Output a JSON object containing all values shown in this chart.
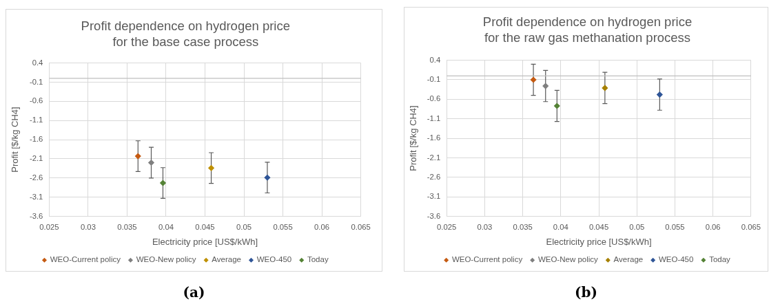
{
  "chart_data": [
    {
      "type": "scatter",
      "title": "Profit dependence on hydrogen price\nfor the base case process",
      "xlabel": "Electricity price [US$/kWh]",
      "ylabel": "Profit [$/kg CH4]",
      "xlim": [
        0.025,
        0.065
      ],
      "xticks": [
        0.025,
        0.03,
        0.035,
        0.04,
        0.045,
        0.05,
        0.055,
        0.06,
        0.065
      ],
      "ylim": [
        -3.6,
        0.4
      ],
      "yticks": [
        -3.6,
        -3.1,
        -2.6,
        -2.1,
        -1.6,
        -1.1,
        -0.6,
        -0.1,
        0.4
      ],
      "grid": true,
      "legend": "bottom",
      "marker": "diamond",
      "ref_lines": [
        {
          "axis": "y",
          "value": 0,
          "color": "#bfbfbf"
        }
      ],
      "annotations": [
        "(a)"
      ],
      "series": [
        {
          "name": "WEO-Current policy",
          "color": "#c55a11",
          "x": [
            0.0364
          ],
          "values": [
            -2.03
          ],
          "errors": [
            0.4
          ]
        },
        {
          "name": "WEO-New policy",
          "color": "#7f7f7f",
          "x": [
            0.0381
          ],
          "values": [
            -2.2
          ],
          "errors": [
            0.4
          ]
        },
        {
          "name": "Average",
          "color": "#bf9000",
          "x": [
            0.0458
          ],
          "values": [
            -2.34
          ],
          "errors": [
            0.4
          ]
        },
        {
          "name": "WEO-450",
          "color": "#2f5597",
          "x": [
            0.053
          ],
          "values": [
            -2.59
          ],
          "errors": [
            0.4
          ]
        },
        {
          "name": "Today",
          "color": "#548235",
          "x": [
            0.0396
          ],
          "values": [
            -2.73
          ],
          "errors": [
            0.4
          ]
        }
      ]
    },
    {
      "type": "scatter",
      "title": "Profit dependence on hydrogen price\nfor the raw gas methanation process",
      "xlabel": "Electricity price [US$/kWh]",
      "ylabel": "Profit [$/kg CH4]",
      "xlim": [
        0.025,
        0.065
      ],
      "xticks": [
        0.025,
        0.03,
        0.035,
        0.04,
        0.045,
        0.05,
        0.055,
        0.06,
        0.065
      ],
      "ylim": [
        -3.6,
        0.4
      ],
      "yticks": [
        -3.6,
        -3.1,
        -2.6,
        -2.1,
        -1.6,
        -1.1,
        -0.6,
        -0.1,
        0.4
      ],
      "grid": true,
      "legend": "bottom",
      "marker": "diamond",
      "ref_lines": [
        {
          "axis": "y",
          "value": 0,
          "color": "#bfbfbf"
        }
      ],
      "annotations": [
        "(b)"
      ],
      "series": [
        {
          "name": "WEO-Current policy",
          "color": "#c55a11",
          "x": [
            0.0364
          ],
          "values": [
            -0.1
          ],
          "errors": [
            0.4
          ]
        },
        {
          "name": "WEO-New policy",
          "color": "#7f7f7f",
          "x": [
            0.038
          ],
          "values": [
            -0.26
          ],
          "errors": [
            0.4
          ]
        },
        {
          "name": "Average",
          "color": "#a68000",
          "x": [
            0.0458
          ],
          "values": [
            -0.31
          ],
          "errors": [
            0.4
          ]
        },
        {
          "name": "WEO-450",
          "color": "#2f5597",
          "x": [
            0.053
          ],
          "values": [
            -0.48
          ],
          "errors": [
            0.4
          ]
        },
        {
          "name": "Today",
          "color": "#548235",
          "x": [
            0.0395
          ],
          "values": [
            -0.77
          ],
          "errors": [
            0.4
          ]
        }
      ]
    }
  ]
}
